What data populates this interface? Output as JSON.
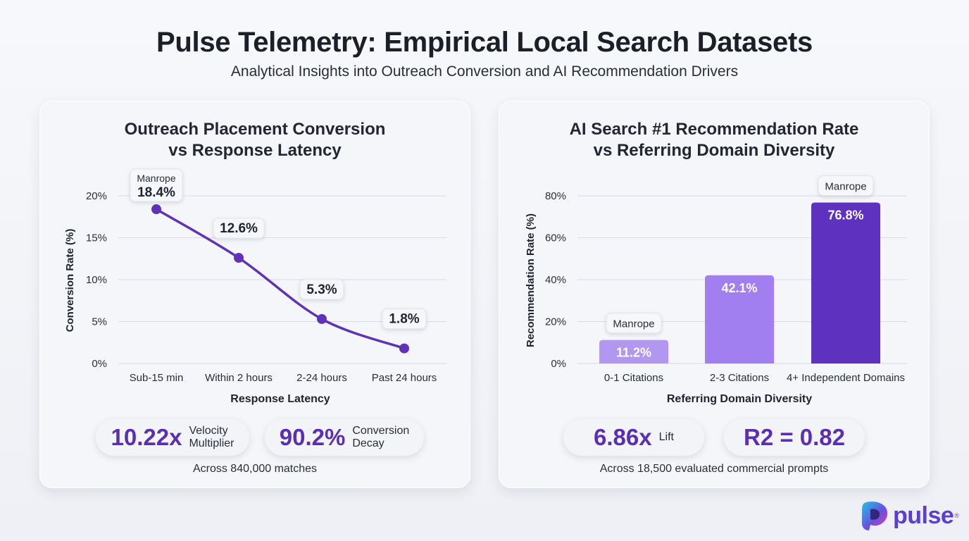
{
  "header": {
    "title": "Pulse Telemetry: Empirical Local Search Datasets",
    "subtitle": "Analytical Insights into Outreach Conversion and AI Recommendation Drivers"
  },
  "left_panel": {
    "title_line1": "Outreach Placement Conversion",
    "title_line2": "vs Response Latency",
    "stats": [
      {
        "value": "10.22x",
        "label_line1": "Velocity",
        "label_line2": "Multiplier"
      },
      {
        "value": "90.2%",
        "label_line1": "Conversion",
        "label_line2": "Decay"
      }
    ],
    "footnote": "Across 840,000 matches"
  },
  "right_panel": {
    "title_line1": "AI Search #1 Recommendation Rate",
    "title_line2": "vs Referring Domain Diversity",
    "stats": [
      {
        "value": "6.86x",
        "label_line1": "Lift",
        "label_line2": ""
      },
      {
        "value": "R2 = 0.82",
        "label_line1": "",
        "label_line2": ""
      }
    ],
    "footnote": "Across 18,500 evaluated commercial prompts"
  },
  "logo": {
    "text": "pulse",
    "reg": "®"
  },
  "colors": {
    "accent": "#5b2fb5",
    "line": "#5f33b7",
    "bar_light": "#b297f0",
    "bar_mid": "#a27ff0",
    "bar_dark": "#5e32bf"
  },
  "chart_data": [
    {
      "type": "line",
      "title": "Outreach Placement Conversion vs Response Latency",
      "xlabel": "Response Latency",
      "ylabel": "Conversion Rate (%)",
      "categories": [
        "Sub-15 min",
        "Within 2 hours",
        "2-24 hours",
        "Past 24 hours"
      ],
      "values": [
        18.4,
        12.6,
        5.3,
        1.8
      ],
      "data_labels": [
        "18.4%",
        "12.6%",
        "5.3%",
        "1.8%"
      ],
      "annotations": [
        {
          "index": 0,
          "text": "Manrope"
        }
      ],
      "yticks": [
        "0%",
        "5%",
        "10%",
        "15%",
        "20%"
      ],
      "ylim": [
        0,
        20
      ],
      "grid": true
    },
    {
      "type": "bar",
      "title": "AI Search #1 Recommendation Rate vs Referring Domain Diversity",
      "xlabel": "Referring Domain Diversity",
      "ylabel": "Recommendation Rate (%)",
      "categories": [
        "0-1 Citations",
        "2-3 Citations",
        "4+ Independent Domains"
      ],
      "values": [
        11.2,
        42.1,
        76.8
      ],
      "data_labels": [
        "11.2%",
        "42.1%",
        "76.8%"
      ],
      "annotations": [
        {
          "index": 0,
          "text": "Manrope"
        },
        {
          "index": 2,
          "text": "Manrope"
        }
      ],
      "yticks": [
        "0%",
        "20%",
        "40%",
        "60%",
        "80%"
      ],
      "ylim": [
        0,
        80
      ],
      "grid": true
    }
  ]
}
